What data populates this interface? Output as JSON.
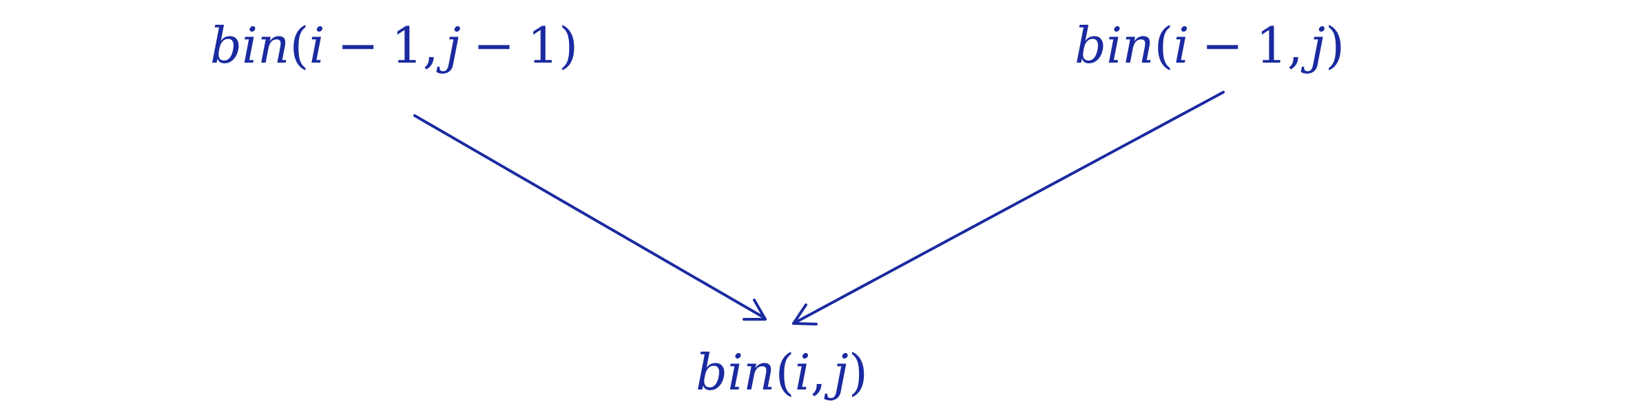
{
  "diagram": {
    "color": "#1a2aa0",
    "nodes": {
      "top_left": {
        "fn": "bin",
        "open": "(",
        "a": "i",
        "a_op": "−",
        "a_num": "1",
        "comma": ",",
        "b": "j",
        "b_op": "−",
        "b_num": "1",
        "close": ")"
      },
      "top_right": {
        "fn": "bin",
        "open": "(",
        "a": "i",
        "a_op": "−",
        "a_num": "1",
        "comma": ",",
        "b": "j",
        "close": ")"
      },
      "bottom": {
        "fn": "bin",
        "open": "(",
        "a": "i",
        "comma": ",",
        "b": "j",
        "close": ")"
      }
    },
    "edges": [
      {
        "from": "top_left",
        "to": "bottom"
      },
      {
        "from": "top_right",
        "to": "bottom"
      }
    ]
  }
}
